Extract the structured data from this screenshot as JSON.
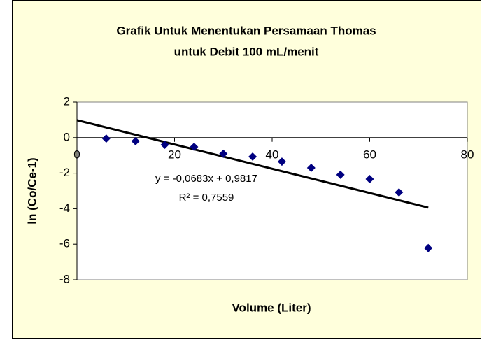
{
  "chart_data": {
    "type": "scatter",
    "title_lines": [
      "Grafik Untuk Menentukan Persamaan Thomas",
      "untuk Debit 100 mL/menit"
    ],
    "x_label": "Volume (Liter)",
    "y_label": "ln (Co/Ce-1)",
    "series": [
      {
        "name": "ln (Co/Ce-1)",
        "color": "#000080",
        "x": [
          6,
          12,
          18,
          24,
          30,
          36,
          42,
          48,
          54,
          60,
          66,
          72
        ],
        "values": [
          -0.05,
          -0.2,
          -0.4,
          -0.52,
          -0.91,
          -1.07,
          -1.35,
          -1.7,
          -2.09,
          -2.33,
          -3.08,
          -6.22
        ]
      }
    ],
    "trendline": {
      "slope": -0.0683,
      "intercept": 0.9817,
      "color": "#000000",
      "equation_label": "y = -0,0683x + 0,9817",
      "r2_label": "R² = 0,7559"
    },
    "xlim": [
      0,
      80
    ],
    "xticks": [
      0,
      20,
      40,
      60,
      80
    ],
    "ylim": [
      -8,
      2
    ],
    "yticks": [
      2,
      0,
      -2,
      -4,
      -6,
      -8
    ],
    "grid": false
  }
}
